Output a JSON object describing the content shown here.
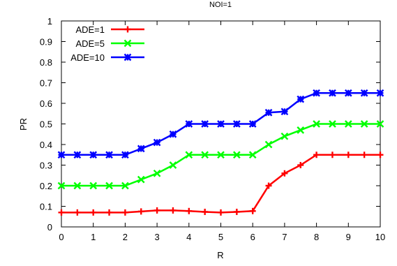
{
  "chart_data": {
    "type": "line",
    "title": "NOI=1",
    "xlabel": "R",
    "ylabel": "PR",
    "xlim": [
      0,
      10
    ],
    "ylim": [
      0,
      1
    ],
    "xticks": [
      0,
      1,
      2,
      3,
      4,
      5,
      6,
      7,
      8,
      9,
      10
    ],
    "yticks": [
      0,
      0.1,
      0.2,
      0.3,
      0.4,
      0.5,
      0.6,
      0.7,
      0.8,
      0.9,
      1
    ],
    "grid": false,
    "legend_position": "top-left",
    "x": [
      0,
      0.5,
      1,
      1.5,
      2,
      2.5,
      3,
      3.5,
      4,
      4.5,
      5,
      5.5,
      6,
      6.5,
      7,
      7.5,
      8,
      8.5,
      9,
      9.5,
      10
    ],
    "series": [
      {
        "name": "ADE=1",
        "color": "#ff0000",
        "marker": "plus",
        "values": [
          0.07,
          0.07,
          0.07,
          0.07,
          0.07,
          0.075,
          0.08,
          0.08,
          0.077,
          0.073,
          0.07,
          0.073,
          0.077,
          0.2,
          0.26,
          0.3,
          0.35,
          0.35,
          0.35,
          0.35,
          0.35
        ]
      },
      {
        "name": "ADE=5",
        "color": "#00ff00",
        "marker": "x",
        "values": [
          0.2,
          0.2,
          0.2,
          0.2,
          0.2,
          0.23,
          0.26,
          0.3,
          0.35,
          0.35,
          0.35,
          0.35,
          0.35,
          0.4,
          0.44,
          0.47,
          0.5,
          0.5,
          0.5,
          0.5,
          0.5
        ]
      },
      {
        "name": "ADE=10",
        "color": "#0000ff",
        "marker": "star",
        "values": [
          0.35,
          0.35,
          0.35,
          0.35,
          0.35,
          0.38,
          0.41,
          0.45,
          0.5,
          0.5,
          0.5,
          0.5,
          0.5,
          0.555,
          0.56,
          0.62,
          0.65,
          0.65,
          0.65,
          0.65,
          0.65
        ]
      }
    ]
  }
}
